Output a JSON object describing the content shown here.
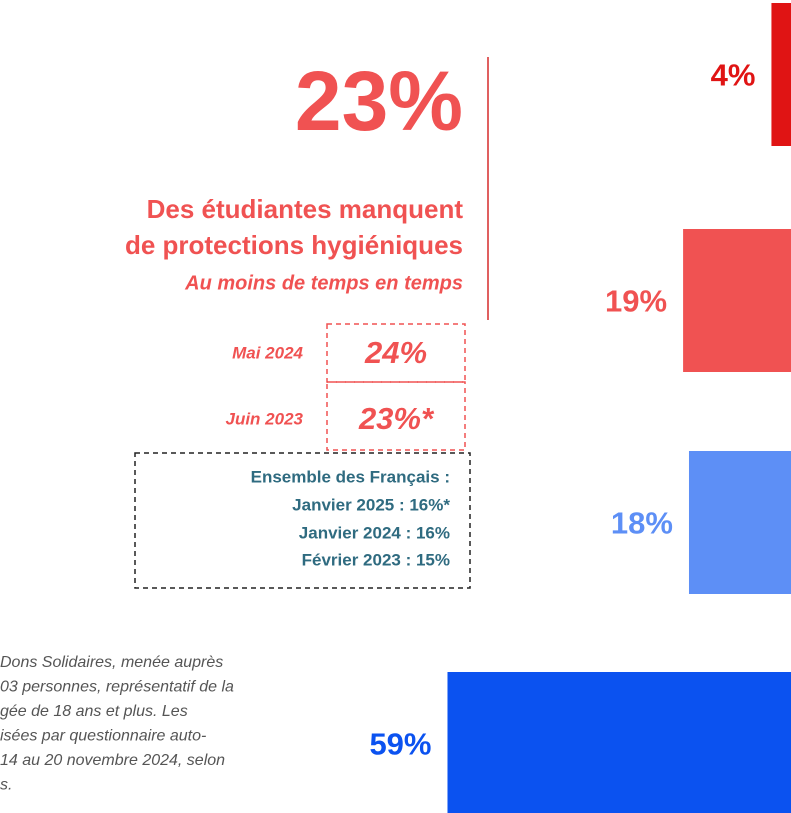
{
  "chart_data": {
    "type": "bar",
    "values": [
      4,
      19,
      18,
      59
    ],
    "value_labels": [
      "4%",
      "19%",
      "18%",
      "59%"
    ],
    "colors": [
      "#e01414",
      "#f05252",
      "#5d8ff6",
      "#0b52f0"
    ]
  },
  "panel": {
    "headline": "23%",
    "title_lines": [
      "Des étudiantes manquent",
      "de protections hygiéniques"
    ],
    "subtitle": "Au moins de temps en temps",
    "history": [
      {
        "label": "Mai 2024",
        "value": "24%"
      },
      {
        "label": "Juin 2023",
        "value": "23%*"
      }
    ],
    "france_lines": [
      "Ensemble des Français :",
      "Janvier 2025 : 16%*",
      "Janvier 2024 : 16%",
      "Février 2023 : 15%"
    ]
  },
  "footnote_lines": [
    "Dons Solidaires, menée auprès",
    "03 personnes, représentatif de la",
    "gée de 18 ans et plus. Les",
    "isées par questionnaire auto-",
    " 14 au 20 novembre 2024, selon",
    "s."
  ]
}
